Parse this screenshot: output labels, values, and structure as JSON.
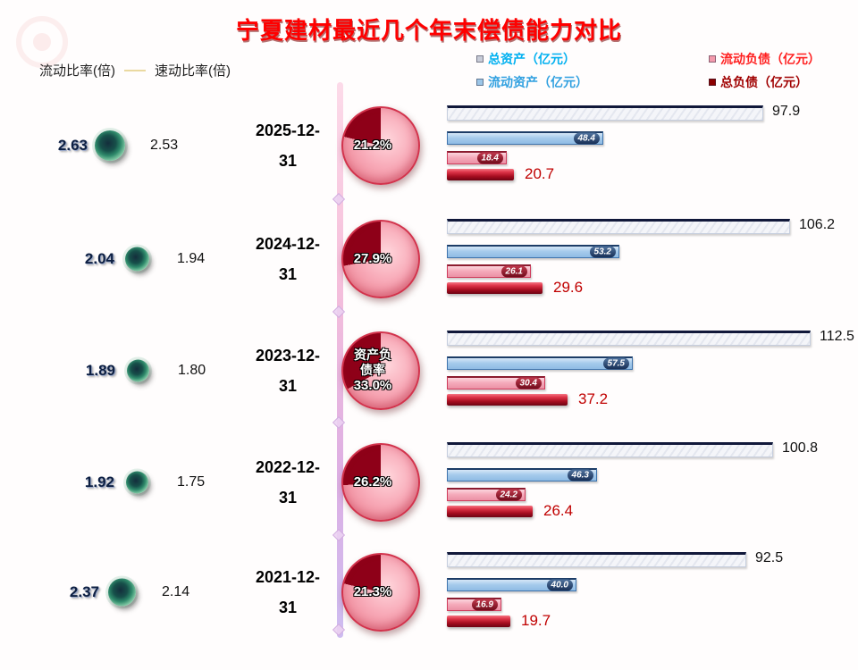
{
  "title": "宁夏建材最近几个年末偿债能力对比",
  "legend_left": {
    "current_ratio": "流动比率(倍)",
    "quick_ratio": "速动比率(倍)"
  },
  "legend_right": [
    {
      "label": "总资产（亿元）",
      "text_color": "#00b0f0",
      "swatch_color": "#c8ccd8"
    },
    {
      "label": "流动负债（亿元）",
      "text_color": "#ff2020",
      "swatch_color": "#f49aac"
    },
    {
      "label": "流动资产（亿元）",
      "text_color": "#30a0e0",
      "swatch_color": "#9cc6e8"
    },
    {
      "label": "总负债（亿元）",
      "text_color": "#a00000",
      "swatch_color": "#8b0000"
    }
  ],
  "rows": [
    {
      "date_line1": "2025-12-",
      "date_line2": "31",
      "current_ratio": "2.63",
      "quick_ratio": "2.53",
      "pie_pct": 21.2,
      "pie_pct_label": "21.2%",
      "pie_label_line1": "",
      "pie_label_line2": "",
      "total_assets": 97.9,
      "total_assets_label": "97.9",
      "current_assets": 48.4,
      "current_assets_label": "48.4",
      "current_liabilities": 18.4,
      "current_liabilities_label": "18.4",
      "total_liabilities": 20.7,
      "total_liabilities_label": "20.7"
    },
    {
      "date_line1": "2024-12-",
      "date_line2": "31",
      "current_ratio": "2.04",
      "quick_ratio": "1.94",
      "pie_pct": 27.9,
      "pie_pct_label": "27.9%",
      "pie_label_line1": "",
      "pie_label_line2": "",
      "total_assets": 106.2,
      "total_assets_label": "106.2",
      "current_assets": 53.2,
      "current_assets_label": "53.2",
      "current_liabilities": 26.1,
      "current_liabilities_label": "26.1",
      "total_liabilities": 29.6,
      "total_liabilities_label": "29.6"
    },
    {
      "date_line1": "2023-12-",
      "date_line2": "31",
      "current_ratio": "1.89",
      "quick_ratio": "1.80",
      "pie_pct": 33.0,
      "pie_pct_label": "33.0%",
      "pie_label_line1": "资产负",
      "pie_label_line2": "债率",
      "total_assets": 112.5,
      "total_assets_label": "112.5",
      "current_assets": 57.5,
      "current_assets_label": "57.5",
      "current_liabilities": 30.4,
      "current_liabilities_label": "30.4",
      "total_liabilities": 37.2,
      "total_liabilities_label": "37.2"
    },
    {
      "date_line1": "2022-12-",
      "date_line2": "31",
      "current_ratio": "1.92",
      "quick_ratio": "1.75",
      "pie_pct": 26.2,
      "pie_pct_label": "26.2%",
      "pie_label_line1": "",
      "pie_label_line2": "",
      "total_assets": 100.8,
      "total_assets_label": "100.8",
      "current_assets": 46.3,
      "current_assets_label": "46.3",
      "current_liabilities": 24.2,
      "current_liabilities_label": "24.2",
      "total_liabilities": 26.4,
      "total_liabilities_label": "26.4"
    },
    {
      "date_line1": "2021-12-",
      "date_line2": "31",
      "current_ratio": "2.37",
      "quick_ratio": "2.14",
      "pie_pct": 21.3,
      "pie_pct_label": "21.3%",
      "pie_label_line1": "",
      "pie_label_line2": "",
      "total_assets": 92.5,
      "total_assets_label": "92.5",
      "current_assets": 40.0,
      "current_assets_label": "40.0",
      "current_liabilities": 16.9,
      "current_liabilities_label": "16.9",
      "total_liabilities": 19.7,
      "total_liabilities_label": "19.7"
    }
  ],
  "chart_data": {
    "type": "bar",
    "orientation": "horizontal",
    "legend_position": "top",
    "title": "宁夏建材最近几个年末偿债能力对比",
    "categories": [
      "2025-12-31",
      "2024-12-31",
      "2023-12-31",
      "2022-12-31",
      "2021-12-31"
    ],
    "series": [
      {
        "name": "总资产（亿元）",
        "type": "bar",
        "values": [
          97.9,
          106.2,
          112.5,
          100.8,
          92.5
        ]
      },
      {
        "name": "流动资产（亿元）",
        "type": "bar",
        "values": [
          48.4,
          53.2,
          57.5,
          46.3,
          40.0
        ]
      },
      {
        "name": "流动负债（亿元）",
        "type": "bar",
        "values": [
          18.4,
          26.1,
          30.4,
          24.2,
          16.9
        ]
      },
      {
        "name": "总负债（亿元）",
        "type": "bar",
        "values": [
          20.7,
          29.6,
          37.2,
          26.4,
          19.7
        ]
      },
      {
        "name": "资产负债率",
        "type": "pie",
        "unit": "%",
        "values": [
          21.2,
          27.9,
          33.0,
          26.2,
          21.3
        ]
      },
      {
        "name": "流动比率(倍)",
        "type": "bubble",
        "values": [
          2.63,
          2.04,
          1.89,
          1.92,
          2.37
        ]
      },
      {
        "name": "速动比率(倍)",
        "type": "bubble",
        "values": [
          2.53,
          1.94,
          1.8,
          1.75,
          2.14
        ]
      }
    ]
  }
}
